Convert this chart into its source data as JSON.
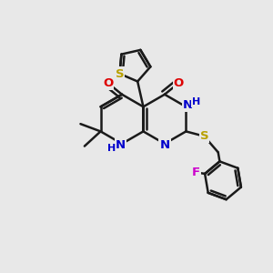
{
  "bg_color": "#e8e8e8",
  "bond_color": "#1a1a1a",
  "bond_width": 1.8,
  "dbo": 0.055,
  "atom_colors": {
    "O": "#dd0000",
    "N": "#0000cc",
    "S": "#b8a000",
    "F": "#cc00cc",
    "C": "#1a1a1a"
  },
  "font_size": 9.5,
  "figsize": [
    3.0,
    3.0
  ],
  "dpi": 100
}
